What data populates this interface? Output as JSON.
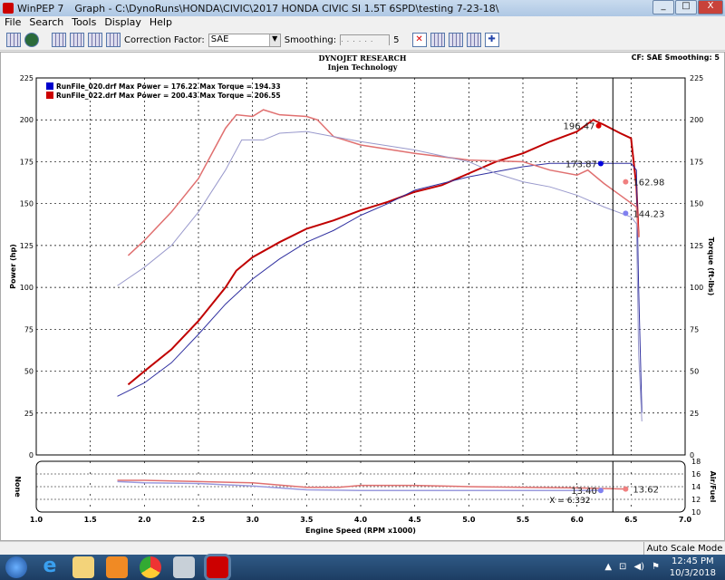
{
  "window": {
    "app": "WinPEP 7",
    "title": "Graph - C:\\DynoRuns\\HONDA\\CIVIC\\2017 HONDA CIVIC SI 1.5T 6SPD\\testing 7-23-18\\"
  },
  "menu": [
    "File",
    "Search",
    "Tools",
    "Display",
    "Help"
  ],
  "toolbar": {
    "correction_label": "Correction Factor:",
    "correction_value": "SAE",
    "smoothing_label": "Smoothing:",
    "smoothing_value": "5"
  },
  "header": {
    "title": "DYNOJET RESEARCH",
    "subtitle": "Injen Technology",
    "right": "CF: SAE  Smoothing: 5"
  },
  "legend": [
    {
      "text": "RunFile_020.drf Max Power = 176.22 Max Torque = 194.33",
      "color": "#0000cc"
    },
    {
      "text": "RunFile_022.drf Max Power = 200.43 Max Torque = 206.55",
      "color": "#cc0000"
    }
  ],
  "status": {
    "mode": "Auto Scale Mode"
  },
  "taskbar": {
    "time": "12:45 PM",
    "date": "10/3/2018",
    "icons": [
      "windows-start",
      "internet-explorer",
      "file-explorer",
      "media-player",
      "chrome",
      "calculator",
      "winpep"
    ]
  },
  "chart_data": [
    {
      "type": "line",
      "xlabel": "Engine Speed (RPM x1000)",
      "ylabel": "Power (hp)",
      "y2label": "Torque (ft-lbs)",
      "xlim": [
        1.0,
        7.0
      ],
      "ylim": [
        0,
        225
      ],
      "xticks": [
        1.0,
        1.5,
        2.0,
        2.5,
        3.0,
        3.5,
        4.0,
        4.5,
        5.0,
        5.5,
        6.0,
        6.5,
        7.0
      ],
      "yticks": [
        0,
        25,
        50,
        75,
        100,
        125,
        150,
        175,
        200,
        225
      ],
      "grid": true,
      "legend": "top-left",
      "series": [
        {
          "name": "RunFile_022.drf power",
          "color": "#c00000",
          "width": 2,
          "x": [
            1.85,
            2.0,
            2.25,
            2.5,
            2.75,
            2.85,
            3.0,
            3.25,
            3.5,
            3.75,
            4.0,
            4.25,
            4.5,
            4.75,
            5.0,
            5.25,
            5.5,
            5.75,
            6.0,
            6.15,
            6.25,
            6.4,
            6.5,
            6.55,
            6.57
          ],
          "y": [
            42,
            50,
            63,
            80,
            100,
            110,
            118,
            127,
            135,
            140,
            146,
            151,
            157,
            161,
            168,
            175,
            180,
            187,
            193,
            200,
            197,
            192,
            189,
            160,
            130
          ]
        },
        {
          "name": "RunFile_020.drf power",
          "color": "#3030a0",
          "width": 1,
          "x": [
            1.75,
            2.0,
            2.25,
            2.5,
            2.75,
            3.0,
            3.25,
            3.5,
            3.75,
            4.0,
            4.25,
            4.5,
            4.75,
            5.0,
            5.25,
            5.5,
            5.75,
            6.0,
            6.25,
            6.5,
            6.55,
            6.57,
            6.6
          ],
          "y": [
            35,
            43,
            55,
            72,
            90,
            105,
            117,
            127,
            134,
            143,
            150,
            158,
            162,
            166,
            169,
            172,
            174,
            174,
            174,
            174,
            170,
            100,
            25
          ]
        },
        {
          "name": "RunFile_022.drf torque",
          "color": "#e07070",
          "width": 1.5,
          "x": [
            1.85,
            2.0,
            2.25,
            2.5,
            2.75,
            2.85,
            3.0,
            3.1,
            3.25,
            3.5,
            3.6,
            3.75,
            4.0,
            4.5,
            5.0,
            5.5,
            5.75,
            6.0,
            6.1,
            6.25,
            6.4,
            6.55,
            6.57
          ],
          "y": [
            119,
            128,
            145,
            165,
            195,
            203,
            202,
            206,
            203,
            202,
            200,
            190,
            185,
            180,
            176,
            175,
            170,
            167,
            170,
            162,
            155,
            148,
            130
          ]
        },
        {
          "name": "RunFile_020.drf torque",
          "color": "#9999cc",
          "width": 1,
          "x": [
            1.75,
            2.0,
            2.25,
            2.5,
            2.75,
            2.9,
            3.1,
            3.25,
            3.5,
            3.75,
            4.0,
            4.5,
            5.0,
            5.25,
            5.5,
            5.75,
            6.0,
            6.25,
            6.5,
            6.55,
            6.57,
            6.6
          ],
          "y": [
            101,
            112,
            125,
            145,
            170,
            188,
            188,
            192,
            193,
            190,
            187,
            182,
            175,
            168,
            163,
            160,
            155,
            148,
            142,
            138,
            60,
            20
          ]
        }
      ],
      "markers": [
        {
          "x": 6.2,
          "y": 196.47,
          "label": "196.47",
          "color": "#dd0000"
        },
        {
          "x": 6.22,
          "y": 173.87,
          "label": "173.87",
          "color": "#0000dd"
        },
        {
          "x": 6.45,
          "y": 162.98,
          "label": "162.98",
          "color": "#f08080"
        },
        {
          "x": 6.45,
          "y": 144.23,
          "label": "144.23",
          "color": "#8080f0"
        }
      ],
      "cursor": {
        "x": 6.332,
        "label": "X = 6.332"
      }
    },
    {
      "type": "line",
      "ylabel": "None",
      "y2label": "Air/Fuel",
      "xlim": [
        1.0,
        7.0
      ],
      "ylim": [
        10,
        18
      ],
      "yticks": [
        10,
        12,
        14,
        16,
        18
      ],
      "grid": true,
      "series": [
        {
          "name": "RunFile_022.drf AFR",
          "color": "#e07070",
          "x": [
            1.75,
            2.0,
            2.5,
            3.0,
            3.5,
            3.8,
            4.0,
            4.5,
            5.0,
            5.5,
            6.0,
            6.45
          ],
          "y": [
            15,
            15,
            14.8,
            14.6,
            13.9,
            13.9,
            14.2,
            14.2,
            14.0,
            13.9,
            13.8,
            13.62
          ]
        },
        {
          "name": "RunFile_020.drf AFR",
          "color": "#9999dd",
          "x": [
            1.75,
            2.0,
            2.5,
            3.0,
            3.5,
            4.0,
            5.0,
            6.2
          ],
          "y": [
            14.8,
            14.6,
            14.5,
            14.1,
            13.5,
            13.4,
            13.4,
            13.4
          ]
        }
      ],
      "markers": [
        {
          "x": 6.22,
          "y": 13.4,
          "label": "13.40",
          "color": "#8080f0"
        },
        {
          "x": 6.45,
          "y": 13.62,
          "label": "13.62",
          "color": "#f08080"
        }
      ]
    }
  ]
}
